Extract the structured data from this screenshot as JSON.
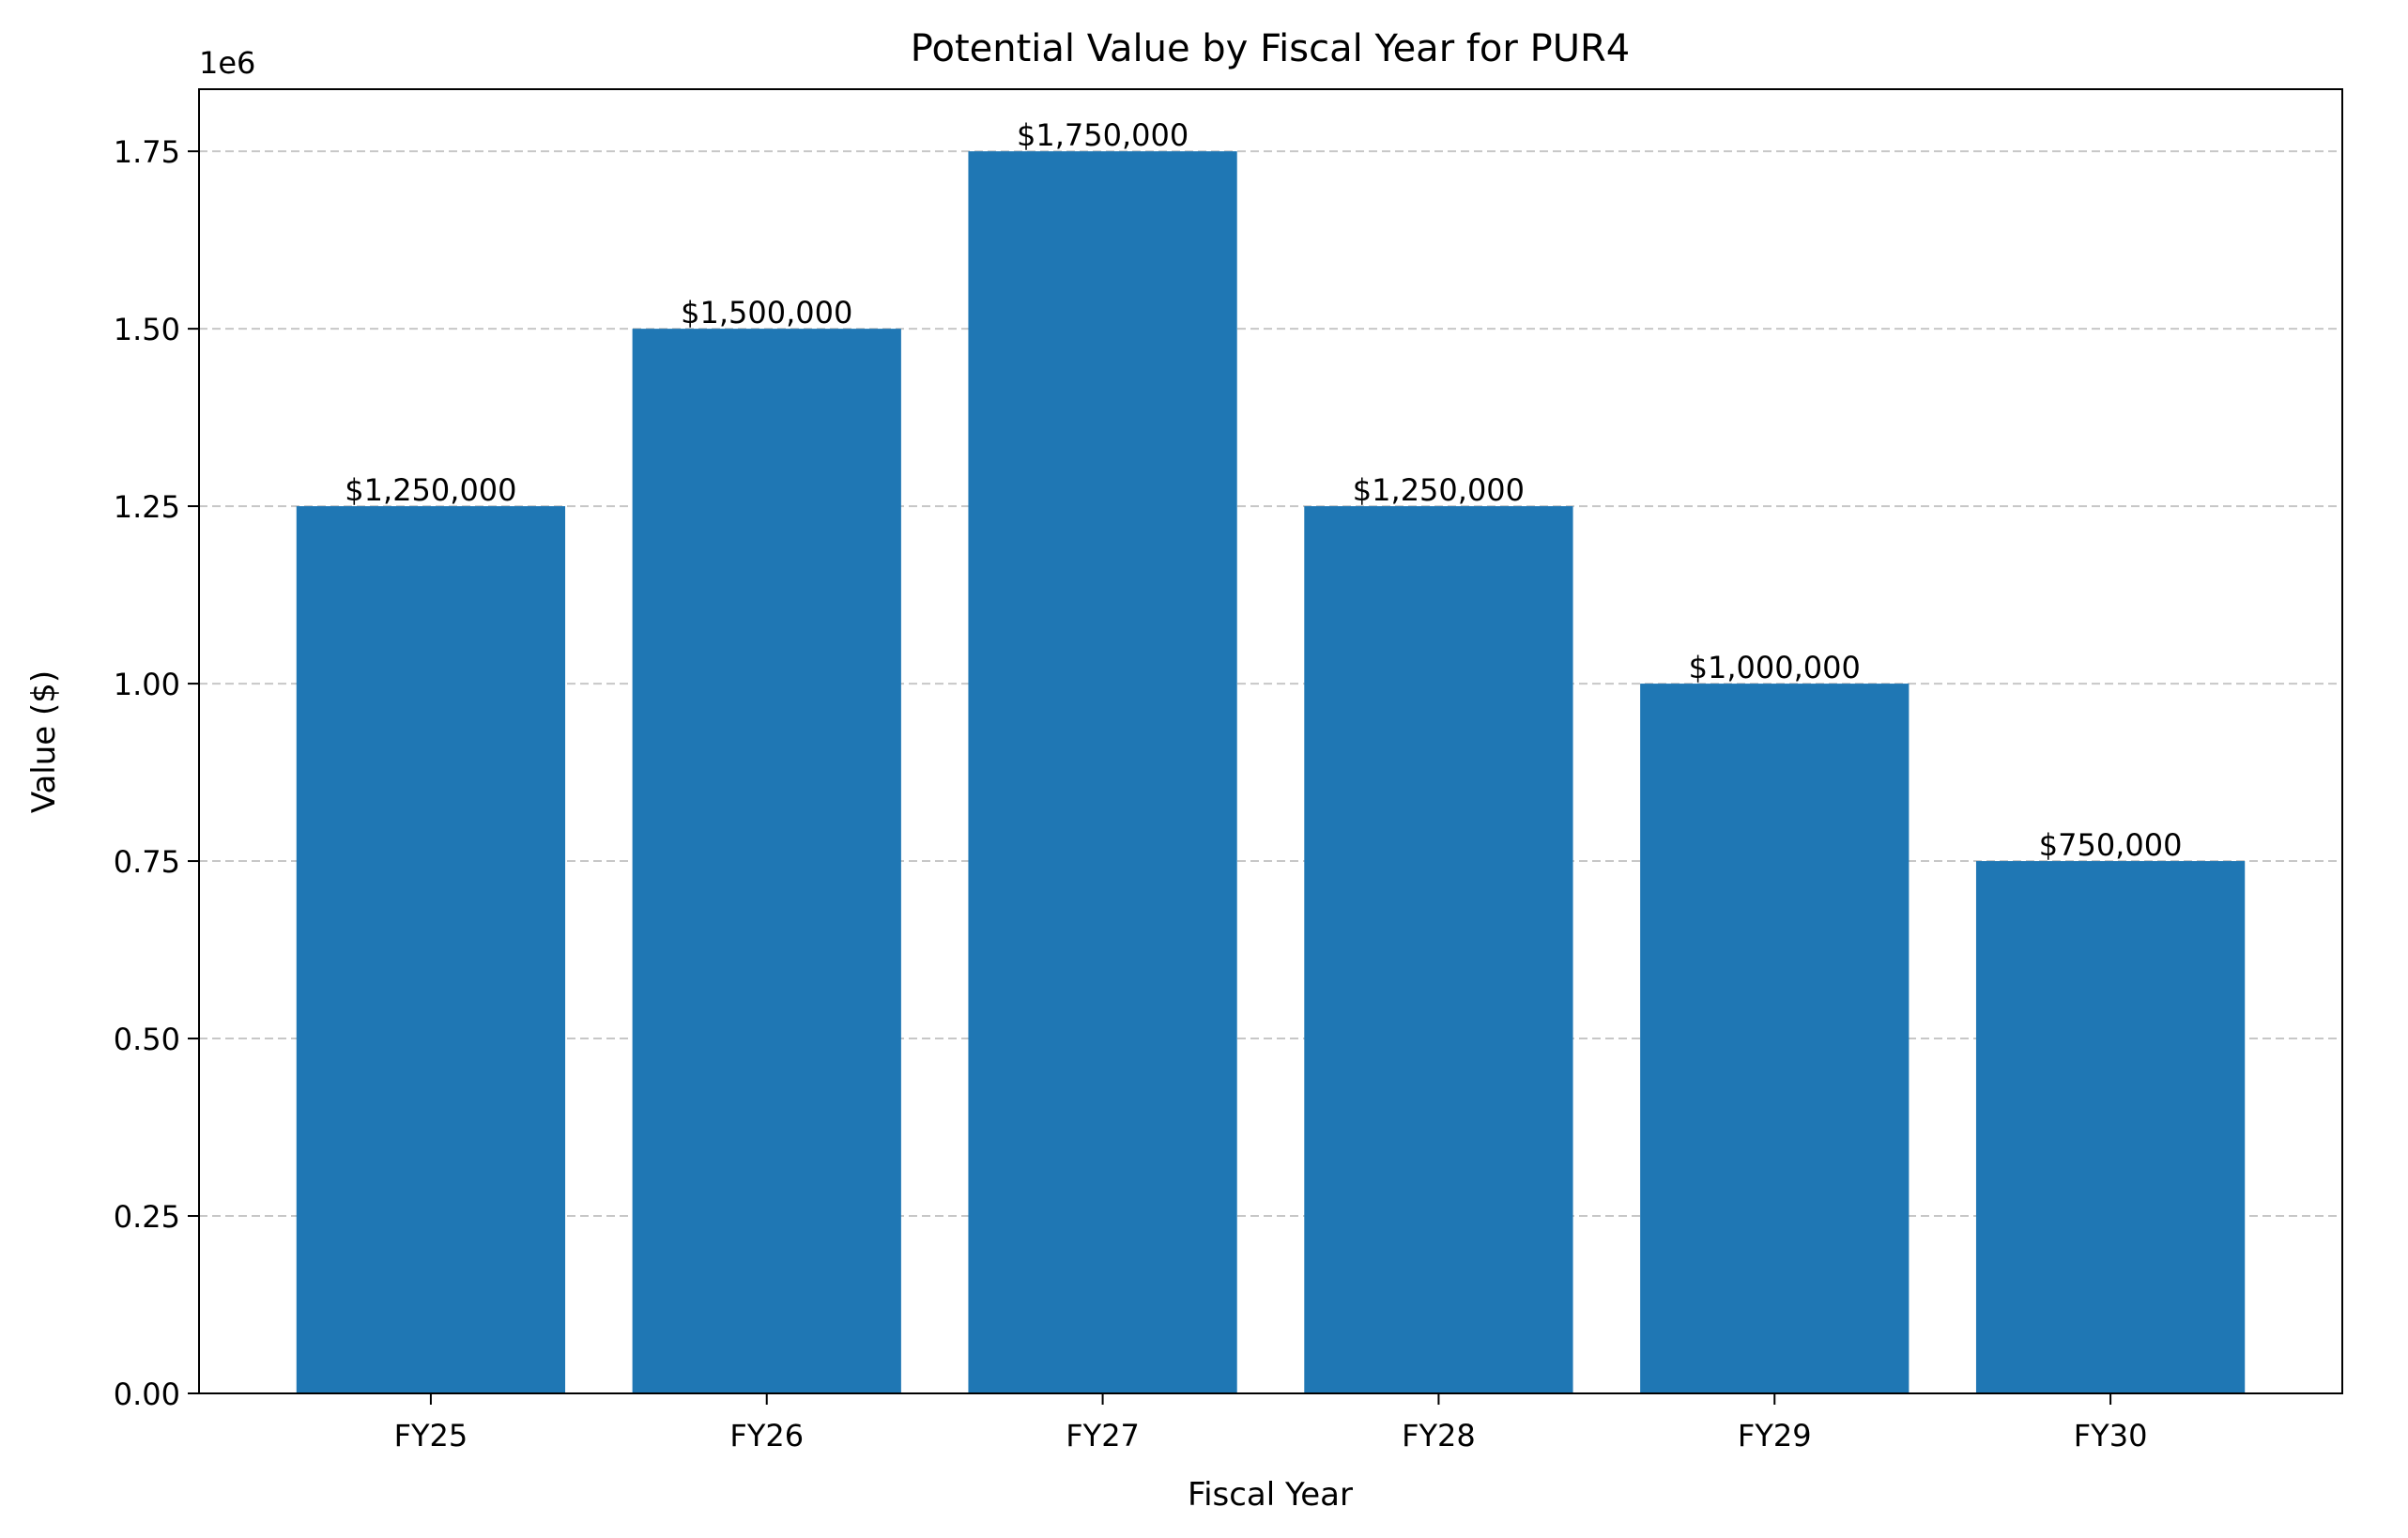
{
  "chart_data": {
    "type": "bar",
    "title": "Potential Value by Fiscal Year for PUR4",
    "xlabel": "Fiscal Year",
    "ylabel": "Value ($)",
    "y_offset_label": "1e6",
    "categories": [
      "FY25",
      "FY26",
      "FY27",
      "FY28",
      "FY29",
      "FY30"
    ],
    "values": [
      1250000,
      1500000,
      1750000,
      1250000,
      1000000,
      750000
    ],
    "data_labels": [
      "$1,250,000",
      "$1,500,000",
      "$1,750,000",
      "$1,250,000",
      "$1,000,000",
      "$750,000"
    ],
    "ylim": [
      0,
      1837500
    ],
    "yticks": [
      0,
      250000,
      500000,
      750000,
      1000000,
      1250000,
      1500000,
      1750000
    ],
    "ytick_labels": [
      "0.00",
      "0.25",
      "0.50",
      "0.75",
      "1.00",
      "1.25",
      "1.50",
      "1.75"
    ],
    "grid": "y-axis, dashed",
    "bar_color": "#1f77b4",
    "legend": "none"
  }
}
